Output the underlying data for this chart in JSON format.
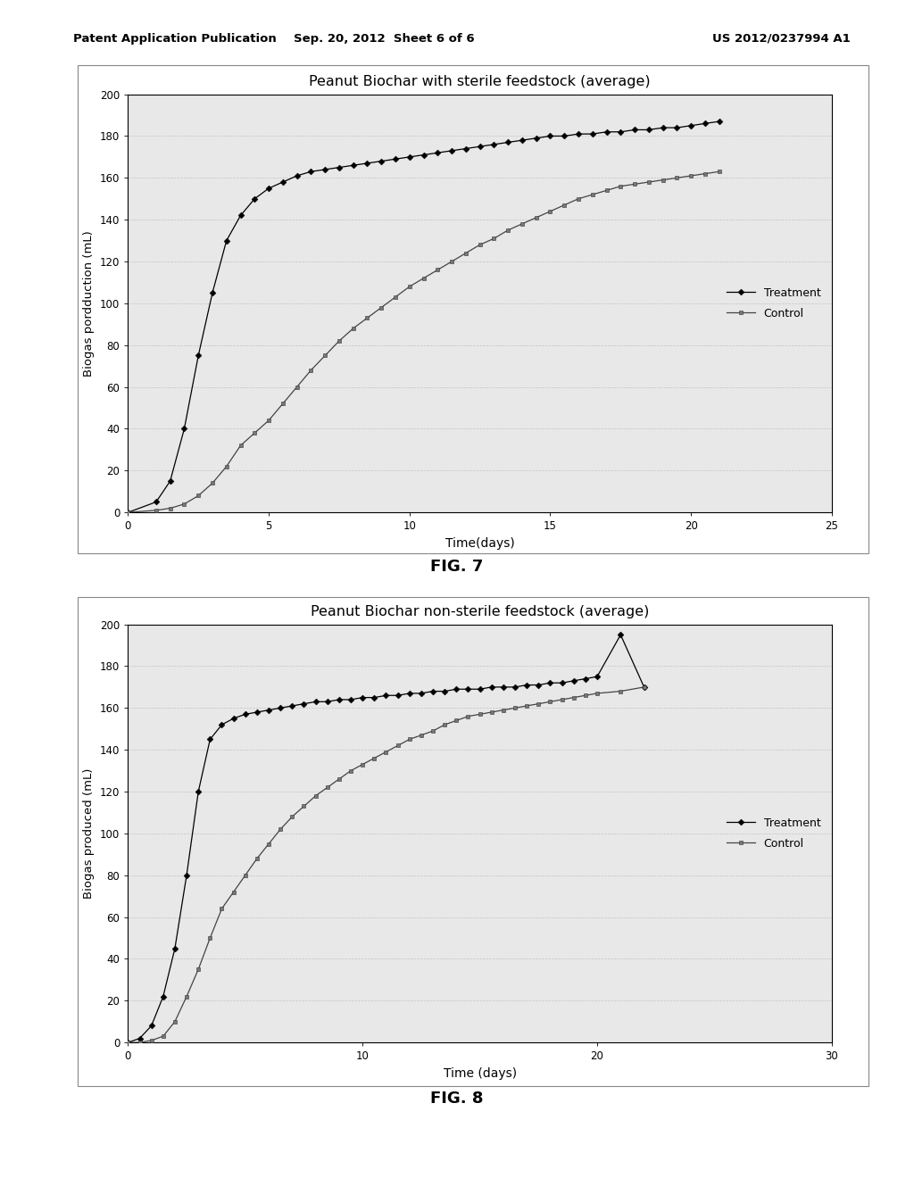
{
  "fig7": {
    "title": "Peanut Biochar with sterile feedstock (average)",
    "xlabel": "Time(days)",
    "ylabel": "Biogas pordduction (mL)",
    "xlim": [
      0,
      25
    ],
    "ylim": [
      0,
      200
    ],
    "xticks": [
      0,
      5,
      10,
      15,
      20,
      25
    ],
    "yticks": [
      0,
      20,
      40,
      60,
      80,
      100,
      120,
      140,
      160,
      180,
      200
    ],
    "treatment_x": [
      0,
      1,
      1.5,
      2,
      2.5,
      3,
      3.5,
      4,
      4.5,
      5,
      5.5,
      6,
      6.5,
      7,
      7.5,
      8,
      8.5,
      9,
      9.5,
      10,
      10.5,
      11,
      11.5,
      12,
      12.5,
      13,
      13.5,
      14,
      14.5,
      15,
      15.5,
      16,
      16.5,
      17,
      17.5,
      18,
      18.5,
      19,
      19.5,
      20,
      20.5,
      21
    ],
    "treatment_y": [
      0,
      5,
      15,
      40,
      75,
      105,
      130,
      142,
      150,
      155,
      158,
      161,
      163,
      164,
      165,
      166,
      167,
      168,
      169,
      170,
      171,
      172,
      173,
      174,
      175,
      176,
      177,
      178,
      179,
      180,
      180,
      181,
      181,
      182,
      182,
      183,
      183,
      184,
      184,
      185,
      186,
      187
    ],
    "control_x": [
      0,
      1,
      1.5,
      2,
      2.5,
      3,
      3.5,
      4,
      4.5,
      5,
      5.5,
      6,
      6.5,
      7,
      7.5,
      8,
      8.5,
      9,
      9.5,
      10,
      10.5,
      11,
      11.5,
      12,
      12.5,
      13,
      13.5,
      14,
      14.5,
      15,
      15.5,
      16,
      16.5,
      17,
      17.5,
      18,
      18.5,
      19,
      19.5,
      20,
      20.5,
      21
    ],
    "control_y": [
      0,
      1,
      2,
      4,
      8,
      14,
      22,
      32,
      38,
      44,
      52,
      60,
      68,
      75,
      82,
      88,
      93,
      98,
      103,
      108,
      112,
      116,
      120,
      124,
      128,
      131,
      135,
      138,
      141,
      144,
      147,
      150,
      152,
      154,
      156,
      157,
      158,
      159,
      160,
      161,
      162,
      163
    ]
  },
  "fig8": {
    "title": "Peanut Biochar non-sterile feedstock (average)",
    "xlabel": "Time (days)",
    "ylabel": "Biogas produced (mL)",
    "xlim": [
      0,
      30
    ],
    "ylim": [
      0,
      200
    ],
    "xticks": [
      0,
      10,
      20,
      30
    ],
    "yticks": [
      0,
      20,
      40,
      60,
      80,
      100,
      120,
      140,
      160,
      180,
      200
    ],
    "treatment_x": [
      0,
      0.5,
      1,
      1.5,
      2,
      2.5,
      3,
      3.5,
      4,
      4.5,
      5,
      5.5,
      6,
      6.5,
      7,
      7.5,
      8,
      8.5,
      9,
      9.5,
      10,
      10.5,
      11,
      11.5,
      12,
      12.5,
      13,
      13.5,
      14,
      14.5,
      15,
      15.5,
      16,
      16.5,
      17,
      17.5,
      18,
      18.5,
      19,
      19.5,
      20,
      21,
      22
    ],
    "treatment_y": [
      0,
      2,
      8,
      22,
      45,
      80,
      120,
      145,
      152,
      155,
      157,
      158,
      159,
      160,
      161,
      162,
      163,
      163,
      164,
      164,
      165,
      165,
      166,
      166,
      167,
      167,
      168,
      168,
      169,
      169,
      169,
      170,
      170,
      170,
      171,
      171,
      172,
      172,
      173,
      174,
      175,
      195,
      170
    ],
    "control_x": [
      0,
      0.5,
      1,
      1.5,
      2,
      2.5,
      3,
      3.5,
      4,
      4.5,
      5,
      5.5,
      6,
      6.5,
      7,
      7.5,
      8,
      8.5,
      9,
      9.5,
      10,
      10.5,
      11,
      11.5,
      12,
      12.5,
      13,
      13.5,
      14,
      14.5,
      15,
      15.5,
      16,
      16.5,
      17,
      17.5,
      18,
      18.5,
      19,
      19.5,
      20,
      21,
      22
    ],
    "control_y": [
      0,
      0,
      1,
      3,
      10,
      22,
      35,
      50,
      64,
      72,
      80,
      88,
      95,
      102,
      108,
      113,
      118,
      122,
      126,
      130,
      133,
      136,
      139,
      142,
      145,
      147,
      149,
      152,
      154,
      156,
      157,
      158,
      159,
      160,
      161,
      162,
      163,
      164,
      165,
      166,
      167,
      168,
      170
    ]
  },
  "header_left": "Patent Application Publication",
  "header_center": "Sep. 20, 2012  Sheet 6 of 6",
  "header_right": "US 2012/0237994 A1",
  "fig7_label": "FIG. 7",
  "fig8_label": "FIG. 8",
  "bg_color": "#ffffff",
  "chart_bg": "#e8e8e8",
  "grid_color": "#bbbbbb",
  "legend_treatment": "Treatment",
  "legend_control": "Control"
}
